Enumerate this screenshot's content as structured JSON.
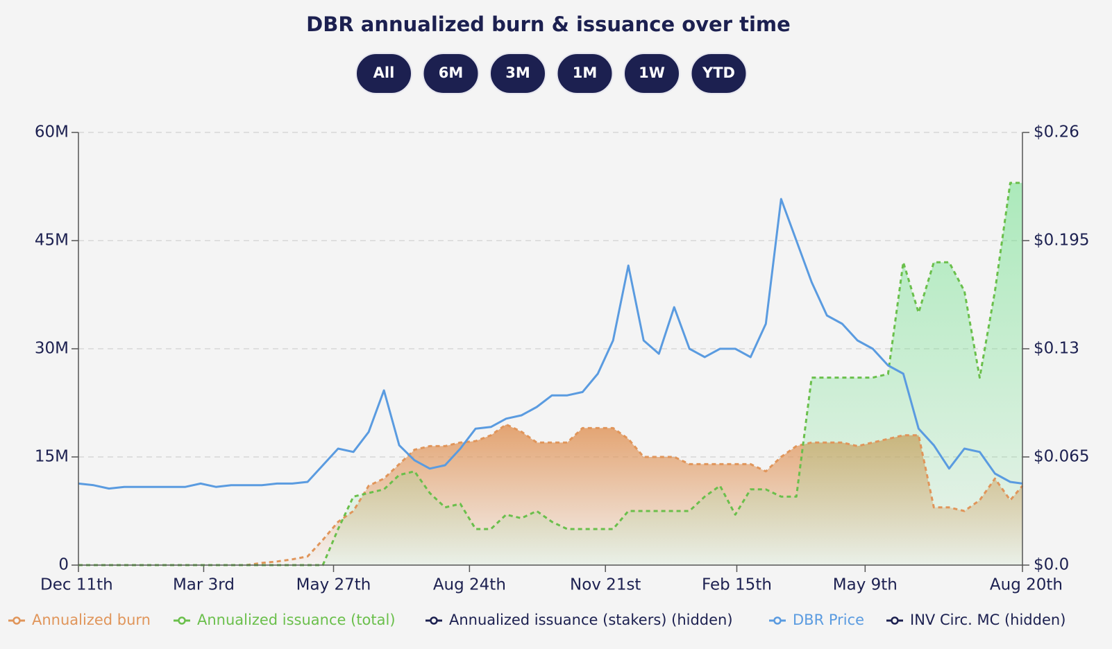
{
  "chart_data": {
    "type": "line",
    "title": "DBR annualized burn & issuance over time",
    "range_buttons": [
      "All",
      "6M",
      "3M",
      "1M",
      "1W",
      "YTD"
    ],
    "x": [
      0,
      10,
      20,
      30,
      40,
      50,
      60,
      70,
      80,
      90,
      100,
      110,
      120,
      130,
      140,
      150,
      160,
      170,
      180,
      190,
      200,
      210,
      220,
      230,
      240,
      250,
      260,
      270,
      280,
      290,
      300,
      310,
      320,
      330,
      340,
      350,
      360,
      370,
      380,
      390,
      400,
      410,
      420,
      430,
      440,
      450,
      460,
      470,
      480,
      490,
      500,
      510,
      520,
      530,
      540,
      550,
      560,
      570,
      580,
      590,
      600,
      610,
      618
    ],
    "xlim": [
      0,
      618
    ],
    "xticks": [
      {
        "value": 0,
        "label": "Dec 11th"
      },
      {
        "value": 82,
        "label": "Mar 3rd"
      },
      {
        "value": 167,
        "label": "May 27th"
      },
      {
        "value": 256,
        "label": "Aug 24th"
      },
      {
        "value": 345,
        "label": "Nov 21st"
      },
      {
        "value": 431,
        "label": "Feb 15th"
      },
      {
        "value": 515,
        "label": "May 9th"
      },
      {
        "value": 618,
        "label": "Aug 20th"
      }
    ],
    "ylim": [
      0,
      60000000
    ],
    "yticks": [
      0,
      {
        "value": 15000000,
        "label": "15M"
      },
      {
        "value": 30000000,
        "label": "30M"
      },
      {
        "value": 45000000,
        "label": "45M"
      },
      {
        "value": 60000000,
        "label": "60M"
      }
    ],
    "y2lim": [
      0,
      0.26
    ],
    "y2ticks": [
      {
        "value": 0,
        "label": "$0.0"
      },
      {
        "value": 0.065,
        "label": "$0.065"
      },
      {
        "value": 0.13,
        "label": "$0.13"
      },
      {
        "value": 0.195,
        "label": "$0.195"
      },
      {
        "value": 0.26,
        "label": "$0.26"
      }
    ],
    "grid": true,
    "legend": "bottom",
    "series": [
      {
        "name": "Annualized burn",
        "color": "#e0955a",
        "dashed": true,
        "fill": true,
        "values": [
          0,
          0,
          0,
          0,
          0,
          0,
          0,
          0,
          0,
          0,
          0,
          0,
          300000,
          500000,
          800000,
          1200000,
          3500000,
          6000000,
          7500000,
          11000000,
          12000000,
          14000000,
          16000000,
          16500000,
          16500000,
          17000000,
          17200000,
          18000000,
          19500000,
          18500000,
          17000000,
          17000000,
          17000000,
          19000000,
          19000000,
          19000000,
          17500000,
          15000000,
          15000000,
          15000000,
          14000000,
          14000000,
          14000000,
          14000000,
          14000000,
          13000000,
          15000000,
          16500000,
          17000000,
          17000000,
          17000000,
          16500000,
          17000000,
          17500000,
          18000000,
          18000000,
          8000000,
          8000000,
          7500000,
          9000000,
          12000000,
          9000000,
          11000000
        ]
      },
      {
        "name": "Annualized issuance (total)",
        "color": "#6abf4b",
        "dashed": true,
        "fill": true,
        "values": [
          0,
          0,
          0,
          0,
          0,
          0,
          0,
          0,
          0,
          0,
          0,
          0,
          0,
          0,
          0,
          0,
          0,
          5000000,
          9500000,
          10000000,
          10500000,
          12500000,
          13000000,
          10000000,
          8000000,
          8500000,
          5000000,
          5000000,
          7000000,
          6500000,
          7500000,
          6000000,
          5000000,
          5000000,
          5000000,
          5000000,
          7500000,
          7500000,
          7500000,
          7500000,
          7500000,
          9500000,
          11000000,
          7000000,
          10500000,
          10500000,
          9500000,
          9500000,
          26000000,
          26000000,
          26000000,
          26000000,
          26000000,
          26500000,
          42000000,
          35000000,
          42000000,
          42000000,
          38000000,
          26000000,
          38000000,
          53000000,
          53000000
        ]
      },
      {
        "name": "Annualized issuance (stakers) (hidden)",
        "color": "#1c2050"
      },
      {
        "name": "DBR Price",
        "color": "#5a9be0",
        "axis": "y2",
        "values": [
          0.049,
          0.048,
          0.046,
          0.047,
          0.047,
          0.047,
          0.047,
          0.047,
          0.049,
          0.047,
          0.048,
          0.048,
          0.048,
          0.049,
          0.049,
          0.05,
          0.06,
          0.07,
          0.068,
          0.08,
          0.105,
          0.072,
          0.063,
          0.058,
          0.06,
          0.07,
          0.082,
          0.083,
          0.088,
          0.09,
          0.095,
          0.102,
          0.102,
          0.104,
          0.115,
          0.135,
          0.18,
          0.135,
          0.127,
          0.155,
          0.13,
          0.125,
          0.13,
          0.13,
          0.125,
          0.145,
          0.22,
          0.195,
          0.17,
          0.15,
          0.145,
          0.135,
          0.13,
          0.12,
          0.115,
          0.082,
          0.072,
          0.058,
          0.07,
          0.068,
          0.055,
          0.05,
          0.049
        ]
      },
      {
        "name": "INV Circ. MC (hidden)",
        "color": "#1c2050"
      }
    ]
  }
}
